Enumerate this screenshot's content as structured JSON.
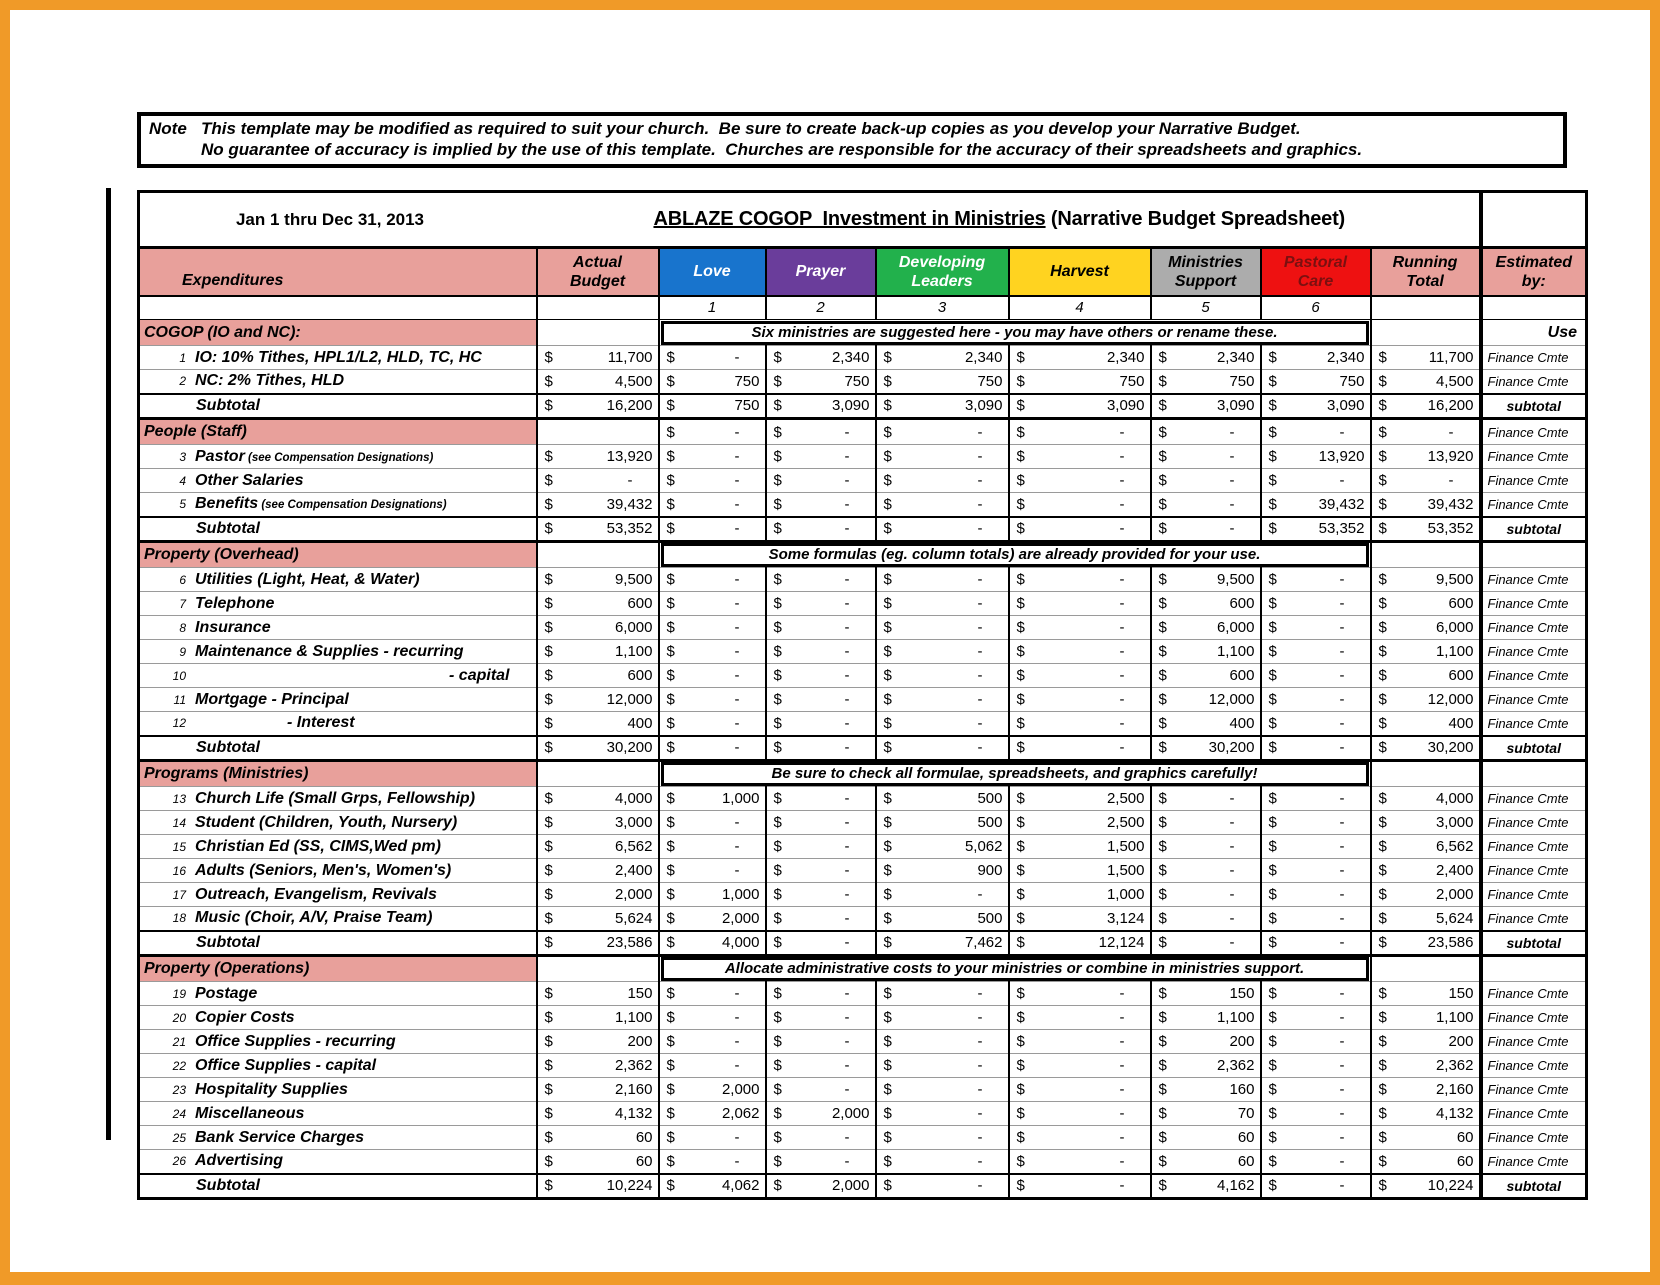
{
  "frame": {
    "border_color": "#F09A28"
  },
  "note": {
    "label": "Note",
    "line1": "This template may be modified as required to suit your church.  Be sure to create back-up copies as you develop your Narrative Budget.",
    "line2": "No guarantee of accuracy is implied by the use of this template.  Churches are responsible for the accuracy of their spreadsheets and graphics."
  },
  "title": {
    "date_range": "Jan 1 thru Dec 31, 2013",
    "main_underlined": "ABLAZE COGOP  Investment in Ministries",
    "main_rest": " (Narrative Budget Spreadsheet)"
  },
  "colors": {
    "section_pink": "#E8A09B",
    "grid_black": "#000000"
  },
  "table": {
    "currency_symbol": "$",
    "columns": [
      {
        "id": "expenditures",
        "label": "Expenditures",
        "bg": "#E8A09B",
        "text": "#000000"
      },
      {
        "id": "actual_budget",
        "label": "Actual\nBudget",
        "bg": "#E8A09B",
        "text": "#000000"
      },
      {
        "id": "love",
        "label": "Love",
        "num": "1",
        "bg": "#1874CD",
        "text": "#FFFFFF"
      },
      {
        "id": "prayer",
        "label": "Prayer",
        "num": "2",
        "bg": "#6A3D9B",
        "text": "#FFFFFF"
      },
      {
        "id": "developing_leaders",
        "label": "Developing\nLeaders",
        "num": "3",
        "bg": "#22B14C",
        "text": "#FFFFFF"
      },
      {
        "id": "harvest",
        "label": "Harvest",
        "num": "4",
        "bg": "#FFD320",
        "text": "#000000"
      },
      {
        "id": "ministries_support",
        "label": "Ministries\nSupport",
        "num": "5",
        "bg": "#ACACAC",
        "text": "#000000"
      },
      {
        "id": "pastoral_care",
        "label": "Pastoral\nCare",
        "num": "6",
        "bg": "#EE1111",
        "text": "#7B1010"
      },
      {
        "id": "running_total",
        "label": "Running\nTotal",
        "bg": "#E8A09B",
        "text": "#000000"
      },
      {
        "id": "estimated_by",
        "label": "Estimated\nby:",
        "bg": "#E8A09B",
        "text": "#000000"
      }
    ],
    "rows": [
      {
        "type": "section",
        "label": "COGOP (IO and NC):",
        "note": "Six ministries are suggested here - you may have others or rename these.",
        "est": "Use",
        "est_style": "use"
      },
      {
        "type": "item",
        "num": "1",
        "label": "IO: 10% Tithes, HPL1/L2, HLD, TC, HC",
        "values": [
          "11,700",
          "-",
          "2,340",
          "2,340",
          "2,340",
          "2,340",
          "2,340",
          "11,700"
        ],
        "est": "Finance Cmte"
      },
      {
        "type": "item",
        "num": "2",
        "label": "NC: 2% Tithes, HLD",
        "values": [
          "4,500",
          "750",
          "750",
          "750",
          "750",
          "750",
          "750",
          "4,500"
        ],
        "est": "Finance Cmte"
      },
      {
        "type": "subtotal",
        "label": "Subtotal",
        "values": [
          "16,200",
          "750",
          "3,090",
          "3,090",
          "3,090",
          "3,090",
          "3,090",
          "16,200"
        ],
        "est": "subtotal"
      },
      {
        "type": "section",
        "label": "People (Staff)",
        "values": [
          "",
          "-",
          "-",
          "-",
          "-",
          "-",
          "-",
          "-"
        ],
        "est": "Finance Cmte",
        "est_style": "finance"
      },
      {
        "type": "item",
        "num": "3",
        "label": "Pastor",
        "sub": " (see Compensation Designations)",
        "values": [
          "13,920",
          "-",
          "-",
          "-",
          "-",
          "-",
          "13,920",
          "13,920"
        ],
        "est": "Finance Cmte"
      },
      {
        "type": "item",
        "num": "4",
        "label": "Other Salaries",
        "values": [
          "-",
          "-",
          "-",
          "-",
          "-",
          "-",
          "-",
          "-"
        ],
        "est": "Finance Cmte"
      },
      {
        "type": "item",
        "num": "5",
        "label": "Benefits",
        "sub": " (see Compensation Designations)",
        "values": [
          "39,432",
          "-",
          "-",
          "-",
          "-",
          "-",
          "39,432",
          "39,432"
        ],
        "est": "Finance Cmte"
      },
      {
        "type": "subtotal",
        "label": "Subtotal",
        "values": [
          "53,352",
          "-",
          "-",
          "-",
          "-",
          "-",
          "53,352",
          "53,352"
        ],
        "est": "subtotal"
      },
      {
        "type": "section",
        "label": "Property (Overhead)",
        "note": "Some formulas (eg. column totals) are already provided for your use.",
        "est": ""
      },
      {
        "type": "item",
        "num": "6",
        "label": "Utilities (Light, Heat, & Water)",
        "values": [
          "9,500",
          "-",
          "-",
          "-",
          "-",
          "9,500",
          "-",
          "9,500"
        ],
        "est": "Finance Cmte"
      },
      {
        "type": "item",
        "num": "7",
        "label": "Telephone",
        "values": [
          "600",
          "-",
          "-",
          "-",
          "-",
          "600",
          "-",
          "600"
        ],
        "est": "Finance Cmte"
      },
      {
        "type": "item",
        "num": "8",
        "label": "Insurance",
        "values": [
          "6,000",
          "-",
          "-",
          "-",
          "-",
          "6,000",
          "-",
          "6,000"
        ],
        "est": "Finance Cmte"
      },
      {
        "type": "item",
        "num": "9",
        "label": "Maintenance & Supplies - recurring",
        "values": [
          "1,100",
          "-",
          "-",
          "-",
          "-",
          "1,100",
          "-",
          "1,100"
        ],
        "est": "Finance Cmte"
      },
      {
        "type": "item",
        "num": "10",
        "label": "- capital",
        "label_style": "right",
        "values": [
          "600",
          "-",
          "-",
          "-",
          "-",
          "600",
          "-",
          "600"
        ],
        "est": "Finance Cmte"
      },
      {
        "type": "item",
        "num": "11",
        "label": "Mortgage  - Principal",
        "values": [
          "12,000",
          "-",
          "-",
          "-",
          "-",
          "12,000",
          "-",
          "12,000"
        ],
        "est": "Finance Cmte"
      },
      {
        "type": "item",
        "num": "12",
        "label": "- Interest",
        "label_style": "deep",
        "values": [
          "400",
          "-",
          "-",
          "-",
          "-",
          "400",
          "-",
          "400"
        ],
        "est": "Finance Cmte"
      },
      {
        "type": "subtotal",
        "label": "Subtotal",
        "values": [
          "30,200",
          "-",
          "-",
          "-",
          "-",
          "30,200",
          "-",
          "30,200"
        ],
        "est": "subtotal"
      },
      {
        "type": "section",
        "label": "Programs (Ministries)",
        "note": "Be sure to check all formulae, spreadsheets, and graphics carefully!",
        "est": ""
      },
      {
        "type": "item",
        "num": "13",
        "label": "Church Life (Small Grps, Fellowship)",
        "values": [
          "4,000",
          "1,000",
          "-",
          "500",
          "2,500",
          "-",
          "-",
          "4,000"
        ],
        "est": "Finance Cmte"
      },
      {
        "type": "item",
        "num": "14",
        "label": "Student (Children, Youth, Nursery)",
        "values": [
          "3,000",
          "-",
          "-",
          "500",
          "2,500",
          "-",
          "-",
          "3,000"
        ],
        "est": "Finance Cmte"
      },
      {
        "type": "item",
        "num": "15",
        "label": "Christian Ed (SS, CIMS,Wed pm)",
        "values": [
          "6,562",
          "-",
          "-",
          "5,062",
          "1,500",
          "-",
          "-",
          "6,562"
        ],
        "est": "Finance Cmte"
      },
      {
        "type": "item",
        "num": "16",
        "label": "Adults (Seniors, Men's, Women's)",
        "values": [
          "2,400",
          "-",
          "-",
          "900",
          "1,500",
          "-",
          "-",
          "2,400"
        ],
        "est": "Finance Cmte"
      },
      {
        "type": "item",
        "num": "17",
        "label": "Outreach, Evangelism, Revivals",
        "values": [
          "2,000",
          "1,000",
          "-",
          "-",
          "1,000",
          "-",
          "-",
          "2,000"
        ],
        "est": "Finance Cmte"
      },
      {
        "type": "item",
        "num": "18",
        "label": "Music (Choir, A/V, Praise Team)",
        "values": [
          "5,624",
          "2,000",
          "-",
          "500",
          "3,124",
          "-",
          "-",
          "5,624"
        ],
        "est": "Finance Cmte"
      },
      {
        "type": "subtotal",
        "label": "Subtotal",
        "values": [
          "23,586",
          "4,000",
          "-",
          "7,462",
          "12,124",
          "-",
          "-",
          "23,586"
        ],
        "est": "subtotal"
      },
      {
        "type": "section",
        "label": "Property (Operations)",
        "note": "Allocate administrative costs to your ministries or combine in ministries support.",
        "est": ""
      },
      {
        "type": "item",
        "num": "19",
        "label": "Postage",
        "values": [
          "150",
          "-",
          "-",
          "-",
          "-",
          "150",
          "-",
          "150"
        ],
        "est": "Finance Cmte"
      },
      {
        "type": "item",
        "num": "20",
        "label": "Copier Costs",
        "values": [
          "1,100",
          "-",
          "-",
          "-",
          "-",
          "1,100",
          "-",
          "1,100"
        ],
        "est": "Finance Cmte"
      },
      {
        "type": "item",
        "num": "21",
        "label": "Office Supplies - recurring",
        "values": [
          "200",
          "-",
          "-",
          "-",
          "-",
          "200",
          "-",
          "200"
        ],
        "est": "Finance Cmte"
      },
      {
        "type": "item",
        "num": "22",
        "label": "Office Supplies - capital",
        "values": [
          "2,362",
          "-",
          "-",
          "-",
          "-",
          "2,362",
          "-",
          "2,362"
        ],
        "est": "Finance Cmte"
      },
      {
        "type": "item",
        "num": "23",
        "label": "Hospitality Supplies",
        "values": [
          "2,160",
          "2,000",
          "-",
          "-",
          "-",
          "160",
          "-",
          "2,160"
        ],
        "est": "Finance Cmte"
      },
      {
        "type": "item",
        "num": "24",
        "label": "Miscellaneous",
        "values": [
          "4,132",
          "2,062",
          "2,000",
          "-",
          "-",
          "70",
          "-",
          "4,132"
        ],
        "est": "Finance Cmte"
      },
      {
        "type": "item",
        "num": "25",
        "label": "Bank Service Charges",
        "values": [
          "60",
          "-",
          "-",
          "-",
          "-",
          "60",
          "-",
          "60"
        ],
        "est": "Finance Cmte"
      },
      {
        "type": "item",
        "num": "26",
        "label": "Advertising",
        "values": [
          "60",
          "-",
          "-",
          "-",
          "-",
          "60",
          "-",
          "60"
        ],
        "est": "Finance Cmte"
      },
      {
        "type": "subtotal",
        "label": "Subtotal",
        "values": [
          "10,224",
          "4,062",
          "2,000",
          "-",
          "-",
          "4,162",
          "-",
          "10,224"
        ],
        "est": "subtotal"
      }
    ]
  }
}
